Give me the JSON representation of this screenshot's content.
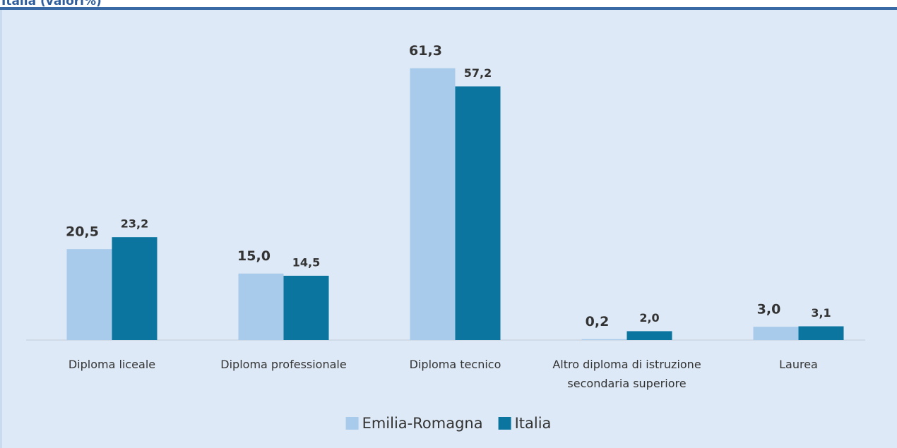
{
  "chart_data": {
    "type": "bar",
    "title": "Italia (valori%)",
    "categories": [
      "Diploma liceale",
      "Diploma professionale",
      "Diploma tecnico",
      "Altro diploma di istruzione secondaria superiore",
      "Laurea"
    ],
    "series": [
      {
        "name": "Emilia-Romagna",
        "color": "#a9cbeb",
        "values": [
          20.5,
          15.0,
          61.3,
          0.2,
          3.0
        ],
        "value_labels": [
          "20,5",
          "15,0",
          "61,3",
          "0,2",
          "3,0"
        ]
      },
      {
        "name": "Italia",
        "color": "#0b759f",
        "values": [
          23.2,
          14.5,
          57.2,
          2.0,
          3.1
        ],
        "value_labels": [
          "23,2",
          "14,5",
          "57,2",
          "2,0",
          "3,1"
        ]
      }
    ],
    "ylim": [
      0,
      70
    ],
    "legend": "bottom"
  }
}
